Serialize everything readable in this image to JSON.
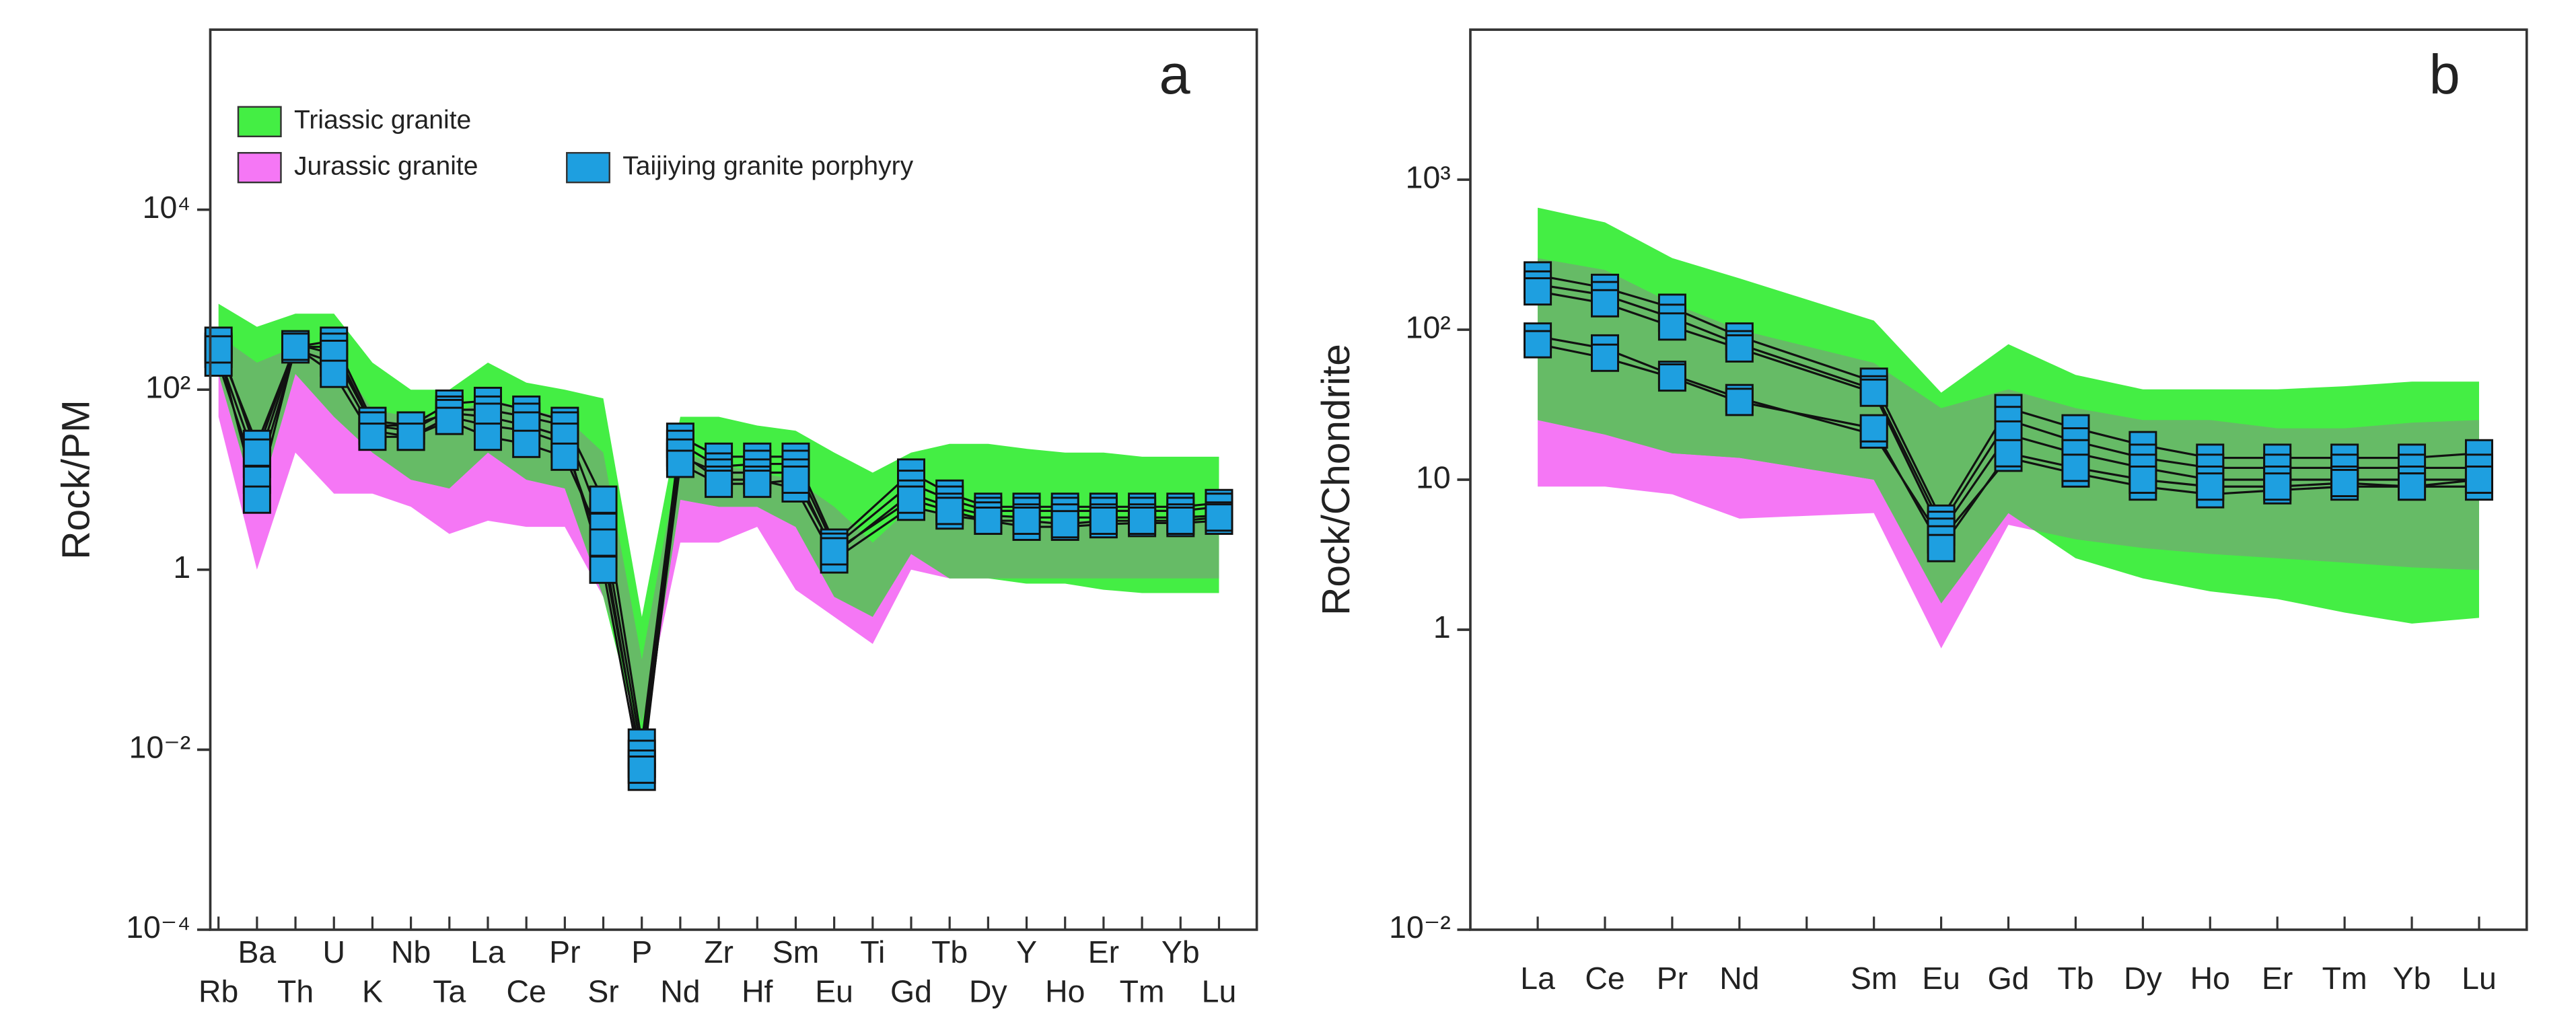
{
  "chart_data": [
    {
      "type": "spider",
      "panel_label": "a",
      "ylabel": "Rock/PM",
      "yscale": "log",
      "ylim": [
        0.0001,
        1000000
      ],
      "yticks": [
        {
          "value": 0.0001,
          "label": "10⁻⁴"
        },
        {
          "value": 0.01,
          "label": "10⁻²"
        },
        1,
        {
          "value": 100,
          "label": "10²"
        },
        {
          "value": 10000,
          "label": "10⁴"
        }
      ],
      "legend": "top-left",
      "overlap_color": "#66bb66",
      "categories": [
        "Rb",
        "Ba",
        "Th",
        "U",
        "K",
        "Nb",
        "Ta",
        "La",
        "Ce",
        "Pr",
        "Sr",
        "P",
        "Nd",
        "Zr",
        "Hf",
        "Sm",
        "Eu",
        "Ti",
        "Gd",
        "Tb",
        "Dy",
        "Y",
        "Ho",
        "Er",
        "Tm",
        "Yb",
        "Lu"
      ],
      "fields": [
        {
          "name": "Triassic granite",
          "color": "#44ee44",
          "upper": [
            900,
            500,
            700,
            700,
            200,
            100,
            100,
            200,
            120,
            100,
            80,
            0.3,
            50,
            50,
            40,
            35,
            20,
            12,
            20,
            25,
            25,
            22,
            20,
            20,
            18,
            18,
            18
          ],
          "lower": [
            150,
            5,
            150,
            50,
            20,
            10,
            8,
            20,
            10,
            8,
            0.5,
            0.01,
            6,
            5,
            5,
            3,
            0.5,
            0.3,
            1.5,
            0.8,
            0.8,
            0.7,
            0.7,
            0.6,
            0.55,
            0.55,
            0.55
          ]
        },
        {
          "name": "Jurassic granite",
          "color": "#f577f5",
          "upper": [
            400,
            200,
            300,
            250,
            60,
            50,
            50,
            80,
            60,
            50,
            20,
            0.1,
            20,
            15,
            12,
            10,
            5,
            2,
            5,
            4,
            4,
            3.5,
            3.5,
            3.5,
            3.5,
            3.5,
            3.5
          ],
          "lower": [
            50,
            1,
            20,
            7,
            7,
            5,
            2.5,
            3.5,
            3,
            3,
            0.5,
            0.02,
            2,
            2,
            3,
            0.6,
            0.3,
            0.15,
            1,
            0.8,
            0.8,
            0.8,
            0.8,
            0.8,
            0.8,
            0.8,
            0.8
          ]
        }
      ],
      "samples": {
        "name": "Taijiying granite porphyry",
        "color": "#1e9fe0",
        "values": [
          [
            300,
            25,
            300,
            350,
            45,
            40,
            70,
            75,
            60,
            45,
            6,
            0.012,
            30,
            18,
            18,
            18,
            2,
            null,
            12,
            7,
            5,
            5,
            5,
            5,
            5,
            5,
            5.5
          ],
          [
            250,
            15,
            300,
            300,
            40,
            35,
            60,
            60,
            50,
            40,
            3,
            0.009,
            25,
            14,
            15,
            15,
            1.8,
            null,
            9,
            6,
            4.5,
            4.5,
            4.5,
            4.5,
            4.5,
            4.5,
            5
          ],
          [
            200,
            10,
            280,
            200,
            35,
            30,
            50,
            40,
            35,
            25,
            1.5,
            0.007,
            18,
            12,
            12,
            12,
            1.5,
            null,
            7,
            5,
            4,
            3.8,
            3.8,
            3.8,
            3.8,
            3.8,
            4
          ],
          [
            350,
            20,
            320,
            250,
            40,
            40,
            55,
            50,
            40,
            30,
            1,
            0.005,
            20,
            10,
            10,
            8,
            1.3,
            null,
            5,
            4,
            3.5,
            3,
            3,
            3.2,
            3.3,
            3.3,
            3.5
          ],
          [
            280,
            6,
            300,
            150,
            30,
            30,
            45,
            30,
            25,
            18,
            2,
            0.006,
            15,
            9,
            9,
            10,
            1.6,
            null,
            6,
            4.5,
            3.5,
            3.5,
            3.2,
            3.5,
            3.5,
            3.5,
            3.8
          ]
        ]
      }
    },
    {
      "type": "spider",
      "panel_label": "b",
      "ylabel": "Rock/Chondrite",
      "yscale": "log",
      "ylim": [
        0.01,
        10000
      ],
      "yticks": [
        {
          "value": 0.01,
          "label": "10⁻²"
        },
        1,
        10,
        {
          "value": 100,
          "label": "10²"
        },
        {
          "value": 1000,
          "label": "10³"
        }
      ],
      "overlap_color": "#66bb66",
      "categories": [
        "La",
        "Ce",
        "Pr",
        "Nd",
        null,
        "Sm",
        "Eu",
        "Gd",
        "Tb",
        "Dy",
        "Ho",
        "Er",
        "Tm",
        "Yb",
        "Lu"
      ],
      "fields": [
        {
          "name": "Triassic granite",
          "color": "#44ee44",
          "upper": [
            650,
            520,
            300,
            220,
            null,
            115,
            38,
            80,
            50,
            40,
            40,
            40,
            42,
            45,
            45
          ],
          "lower": [
            25,
            20,
            15,
            14,
            null,
            10,
            1.5,
            6,
            3,
            2.2,
            1.8,
            1.6,
            1.3,
            1.1,
            1.2
          ]
        },
        {
          "name": "Jurassic granite",
          "color": "#f577f5",
          "upper": [
            300,
            250,
            150,
            100,
            null,
            60,
            30,
            40,
            30,
            25,
            25,
            22,
            22,
            24,
            25
          ],
          "lower": [
            9,
            9,
            8,
            5.5,
            null,
            6,
            0.75,
            5,
            4,
            3.5,
            3.2,
            3,
            2.8,
            2.6,
            2.5
          ]
        }
      ],
      "samples": {
        "name": "Taijiying granite porphyry",
        "color": "#1e9fe0",
        "values": [
          [
            230,
            190,
            140,
            90,
            null,
            45,
            5.5,
            30,
            22,
            17,
            14,
            14,
            14,
            14,
            15
          ],
          [
            200,
            170,
            120,
            80,
            null,
            40,
            5,
            25,
            18,
            14,
            12,
            12,
            12,
            12,
            12
          ],
          [
            180,
            150,
            105,
            75,
            null,
            38,
            4.5,
            20,
            15,
            12,
            10,
            10,
            10,
            10,
            10
          ],
          [
            90,
            75,
            50,
            35,
            null,
            20,
            4,
            14,
            11,
            9,
            8,
            8.5,
            9,
            9,
            9
          ],
          [
            80,
            65,
            48,
            33,
            null,
            22,
            3.5,
            15,
            12,
            10,
            9,
            9,
            9.5,
            9,
            10
          ]
        ]
      }
    }
  ]
}
